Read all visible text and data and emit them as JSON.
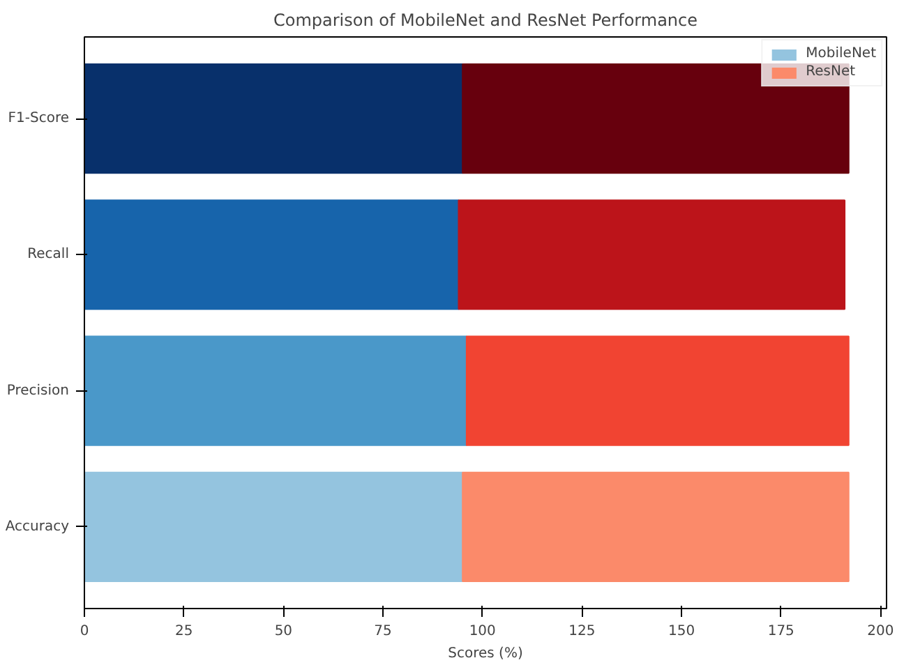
{
  "chart_data": {
    "type": "bar",
    "orientation": "horizontal",
    "stacked": true,
    "title": "Comparison of MobileNet and ResNet Performance",
    "xlabel": "Scores (%)",
    "categories": [
      "F1-Score",
      "Recall",
      "Precision",
      "Accuracy"
    ],
    "series": [
      {
        "name": "MobileNet",
        "colors": [
          "#08306b",
          "#1764ab",
          "#4a98c9",
          "#94c4df"
        ],
        "values": [
          95,
          94,
          96,
          95
        ]
      },
      {
        "name": "ResNet",
        "colors": [
          "#67000d",
          "#bc141a",
          "#f14432",
          "#fb8a6a"
        ],
        "values": [
          97,
          97,
          96,
          97
        ]
      }
    ],
    "xlim": [
      0,
      201.5
    ],
    "xticks": [
      0,
      25,
      50,
      75,
      100,
      125,
      150,
      175,
      200
    ],
    "grid": false,
    "legend": "top right"
  }
}
